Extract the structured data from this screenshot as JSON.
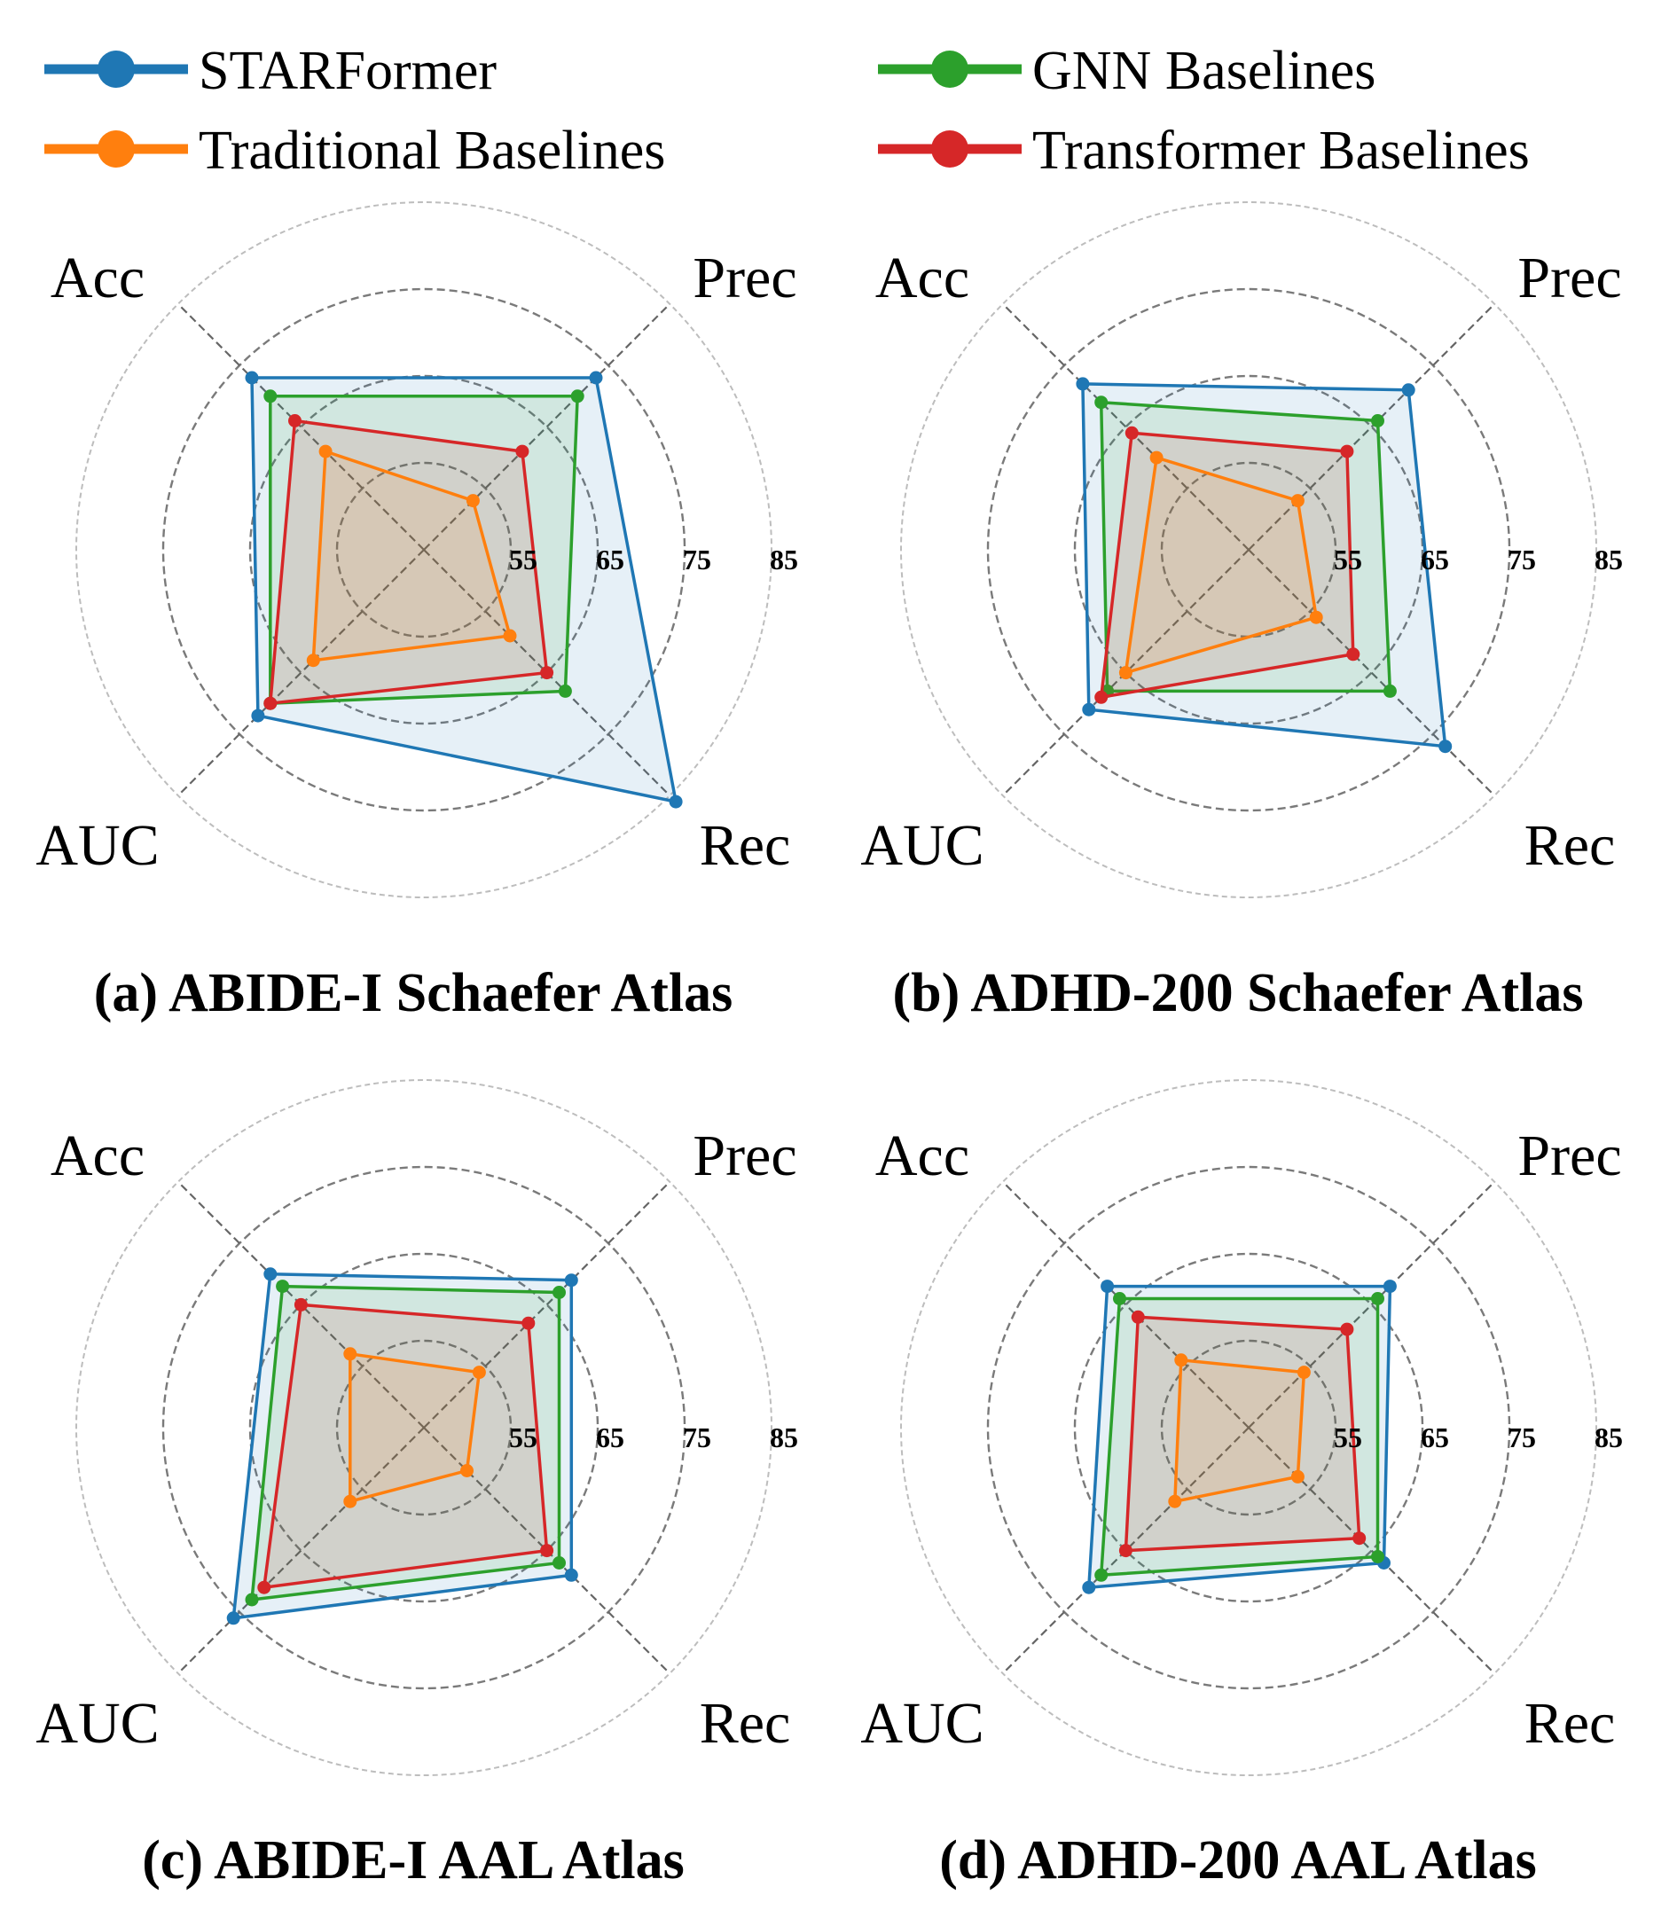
{
  "legend": [
    {
      "name": "STARFormer",
      "color": "#1f77b4"
    },
    {
      "name": "Traditional Baselines",
      "color": "#ff7f0e"
    },
    {
      "name": "GNN Baselines",
      "color": "#2ca02c"
    },
    {
      "name": "Transformer Baselines",
      "color": "#d62728"
    }
  ],
  "chart_data": [
    {
      "type": "radar",
      "title": "(a) ABIDE-I Schaefer Atlas",
      "axes": [
        "Acc",
        "Prec",
        "Rec",
        "AUC"
      ],
      "rings": [
        55,
        65,
        75,
        85
      ],
      "ring_labels": [
        "55",
        "65",
        "75",
        "85"
      ],
      "range": [
        45,
        85
      ],
      "series": [
        {
          "name": "STARFormer",
          "values": [
            73,
            73,
            86,
            72
          ]
        },
        {
          "name": "GNN Baselines",
          "values": [
            70,
            70,
            68,
            70
          ]
        },
        {
          "name": "Transformer Baselines",
          "values": [
            66,
            61,
            65,
            70
          ]
        },
        {
          "name": "Traditional Baselines",
          "values": [
            61,
            53,
            59,
            63
          ]
        }
      ]
    },
    {
      "type": "radar",
      "title": "(b) ADHD-200 Schaefer Atlas",
      "axes": [
        "Acc",
        "Prec",
        "Rec",
        "AUC"
      ],
      "rings": [
        55,
        65,
        75,
        85
      ],
      "ring_labels": [
        "55",
        "65",
        "75",
        "85"
      ],
      "range": [
        45,
        85
      ],
      "series": [
        {
          "name": "STARFormer",
          "values": [
            72,
            71,
            77,
            71
          ]
        },
        {
          "name": "GNN Baselines",
          "values": [
            69,
            66,
            68,
            68
          ]
        },
        {
          "name": "Transformer Baselines",
          "values": [
            64,
            61,
            62,
            69
          ]
        },
        {
          "name": "Traditional Baselines",
          "values": [
            60,
            53,
            56,
            65
          ]
        }
      ]
    },
    {
      "type": "radar",
      "title": "(c) ABIDE-I AAL Atlas",
      "axes": [
        "Acc",
        "Prec",
        "Rec",
        "AUC"
      ],
      "rings": [
        55,
        65,
        75,
        85
      ],
      "ring_labels": [
        "55",
        "65",
        "75",
        "85"
      ],
      "range": [
        45,
        85
      ],
      "series": [
        {
          "name": "STARFormer",
          "values": [
            70,
            69,
            69,
            76
          ]
        },
        {
          "name": "GNN Baselines",
          "values": [
            68,
            67,
            67,
            73
          ]
        },
        {
          "name": "Transformer Baselines",
          "values": [
            65,
            62,
            65,
            71
          ]
        },
        {
          "name": "Traditional Baselines",
          "values": [
            57,
            54,
            52,
            57
          ]
        }
      ]
    },
    {
      "type": "radar",
      "title": "(d) ADHD-200 AAL Atlas",
      "axes": [
        "Acc",
        "Prec",
        "Rec",
        "AUC"
      ],
      "rings": [
        55,
        65,
        75,
        85
      ],
      "ring_labels": [
        "55",
        "65",
        "75",
        "85"
      ],
      "range": [
        45,
        85
      ],
      "series": [
        {
          "name": "STARFormer",
          "values": [
            68,
            68,
            67,
            71
          ]
        },
        {
          "name": "GNN Baselines",
          "values": [
            66,
            66,
            66,
            69
          ]
        },
        {
          "name": "Transformer Baselines",
          "values": [
            63,
            61,
            63,
            65
          ]
        },
        {
          "name": "Traditional Baselines",
          "values": [
            56,
            54,
            53,
            57
          ]
        }
      ]
    }
  ]
}
